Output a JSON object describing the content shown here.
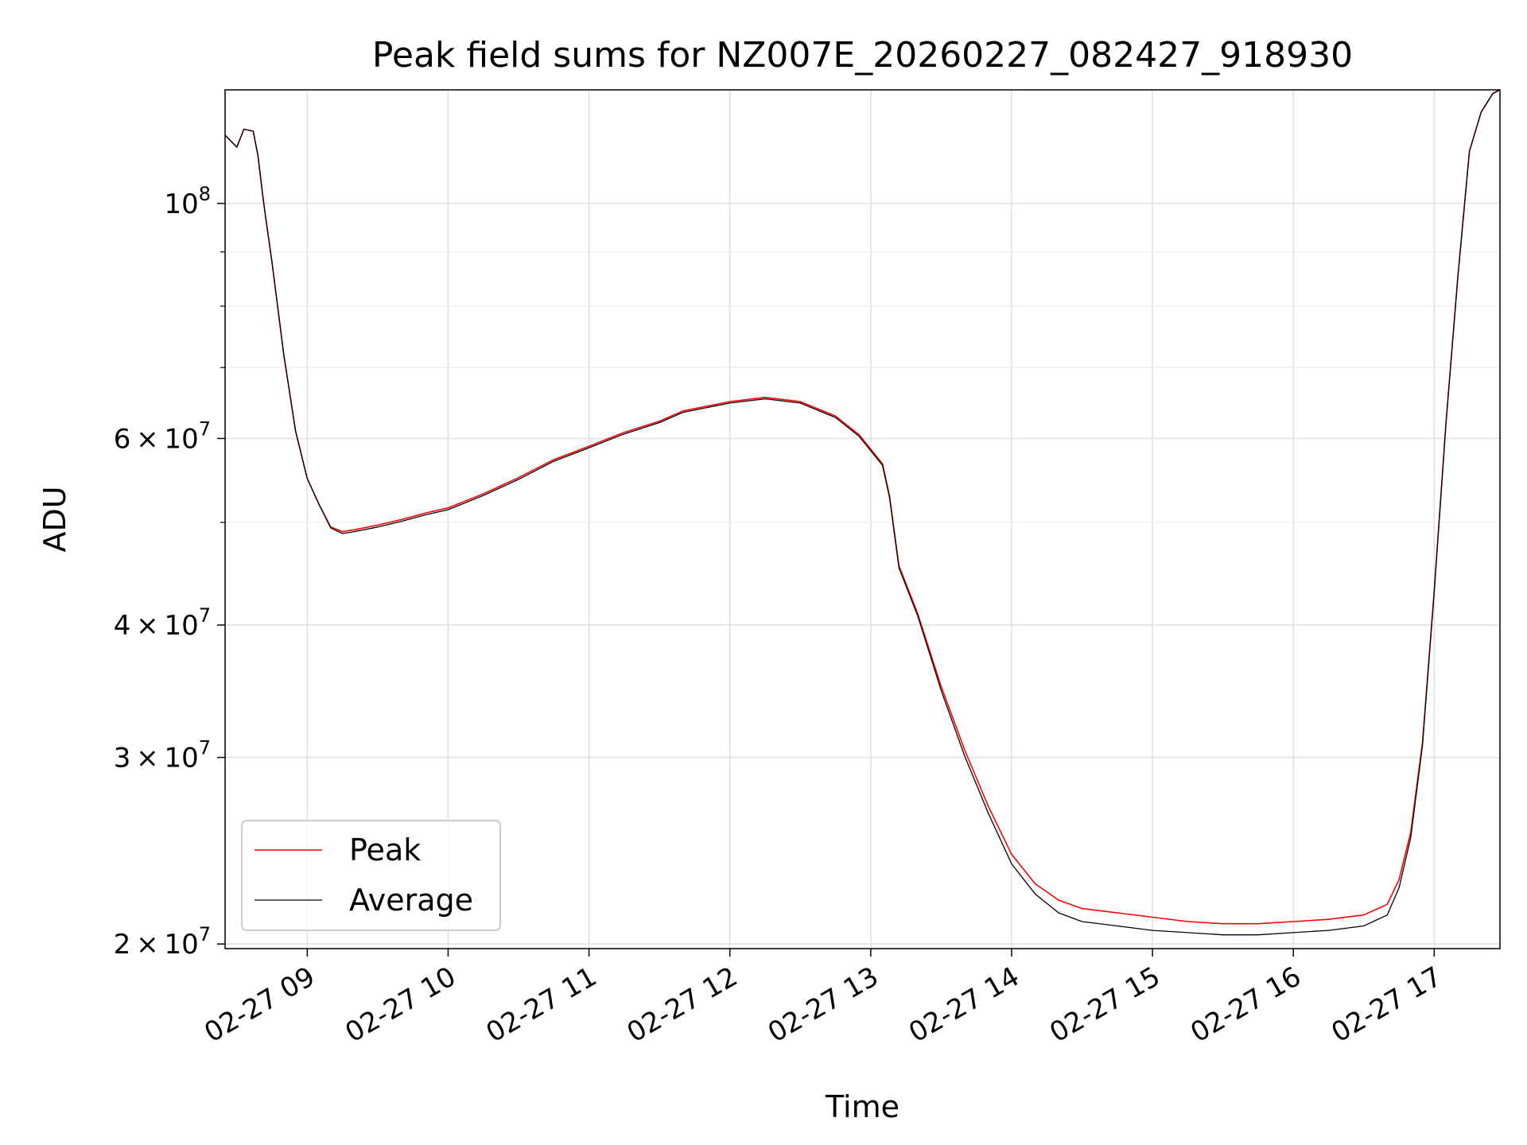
{
  "chart_data": {
    "type": "line",
    "title": "Peak field sums for NZ007E_20260227_082427_918930",
    "xlabel": "Time",
    "ylabel": "ADU",
    "y_scale": "log",
    "ylim": [
      19800000,
      128000000
    ],
    "xlim": [
      "02-27 08:25",
      "02-27 17:28"
    ],
    "grid": true,
    "legend": "lower-left",
    "x_ticks": [
      "02-27 09",
      "02-27 10",
      "02-27 11",
      "02-27 12",
      "02-27 13",
      "02-27 14",
      "02-27 15",
      "02-27 16",
      "02-27 17"
    ],
    "y_ticks_major": [
      {
        "mant": "",
        "exp": "8",
        "value": 100000000
      },
      {
        "mant": "6",
        "exp": "7",
        "value": 60000000
      },
      {
        "mant": "4",
        "exp": "7",
        "value": 40000000
      },
      {
        "mant": "3",
        "exp": "7",
        "value": 30000000
      },
      {
        "mant": "2",
        "exp": "7",
        "value": 20000000
      }
    ],
    "y_ticks_minor": [
      90000000,
      80000000,
      70000000,
      50000000
    ],
    "x": [
      "02-27 08:25",
      "02-27 08:30",
      "02-27 08:33",
      "02-27 08:37",
      "02-27 08:39",
      "02-27 08:41",
      "02-27 08:42",
      "02-27 08:45",
      "02-27 08:50",
      "02-27 08:55",
      "02-27 09:00",
      "02-27 09:05",
      "02-27 09:10",
      "02-27 09:15",
      "02-27 09:20",
      "02-27 09:30",
      "02-27 09:40",
      "02-27 09:50",
      "02-27 10:00",
      "02-27 10:15",
      "02-27 10:30",
      "02-27 10:45",
      "02-27 11:00",
      "02-27 11:15",
      "02-27 11:30",
      "02-27 11:40",
      "02-27 12:00",
      "02-27 12:15",
      "02-27 12:30",
      "02-27 12:45",
      "02-27 12:55",
      "02-27 13:05",
      "02-27 13:08",
      "02-27 13:12",
      "02-27 13:20",
      "02-27 13:30",
      "02-27 13:40",
      "02-27 13:50",
      "02-27 14:00",
      "02-27 14:10",
      "02-27 14:20",
      "02-27 14:30",
      "02-27 14:45",
      "02-27 15:00",
      "02-27 15:15",
      "02-27 15:30",
      "02-27 15:45",
      "02-27 16:00",
      "02-27 16:15",
      "02-27 16:30",
      "02-27 16:40",
      "02-27 16:45",
      "02-27 16:50",
      "02-27 16:55",
      "02-27 17:00",
      "02-27 17:05",
      "02-27 17:10",
      "02-27 17:15",
      "02-27 17:20",
      "02-27 17:25",
      "02-27 17:28"
    ],
    "series": [
      {
        "name": "Peak",
        "color": "#ff0000",
        "values": [
          116000000,
          113000000,
          117500000,
          117000000,
          111000000,
          102000000,
          98000000,
          88000000,
          72000000,
          61000000,
          55000000,
          52000000,
          49500000,
          49000000,
          49200000,
          49700000,
          50300000,
          51000000,
          51600000,
          53200000,
          55100000,
          57300000,
          59000000,
          60800000,
          62300000,
          63700000,
          65000000,
          65600000,
          65000000,
          63000000,
          60500000,
          56800000,
          53000000,
          45500000,
          41000000,
          35000000,
          30500000,
          27000000,
          24300000,
          22800000,
          22000000,
          21600000,
          21400000,
          21200000,
          21000000,
          20900000,
          20900000,
          21000000,
          21100000,
          21300000,
          21800000,
          23000000,
          25500000,
          31000000,
          43000000,
          62000000,
          85000000,
          112000000,
          122000000,
          127000000,
          128000000
        ]
      },
      {
        "name": "Average",
        "color": "#000000",
        "values": [
          116000000,
          113000000,
          117500000,
          117000000,
          111000000,
          102000000,
          98000000,
          88000000,
          72000000,
          61000000,
          55000000,
          52000000,
          49400000,
          48800000,
          49000000,
          49500000,
          50100000,
          50800000,
          51400000,
          53000000,
          54900000,
          57100000,
          58800000,
          60600000,
          62100000,
          63500000,
          64800000,
          65400000,
          64800000,
          62800000,
          60300000,
          56600000,
          52800000,
          45300000,
          40800000,
          34700000,
          30100000,
          26600000,
          23800000,
          22300000,
          21400000,
          21000000,
          20800000,
          20600000,
          20500000,
          20400000,
          20400000,
          20500000,
          20600000,
          20800000,
          21300000,
          22600000,
          25200000,
          30800000,
          43000000,
          62000000,
          85000000,
          112000000,
          122000000,
          127000000,
          128000000
        ]
      }
    ]
  }
}
